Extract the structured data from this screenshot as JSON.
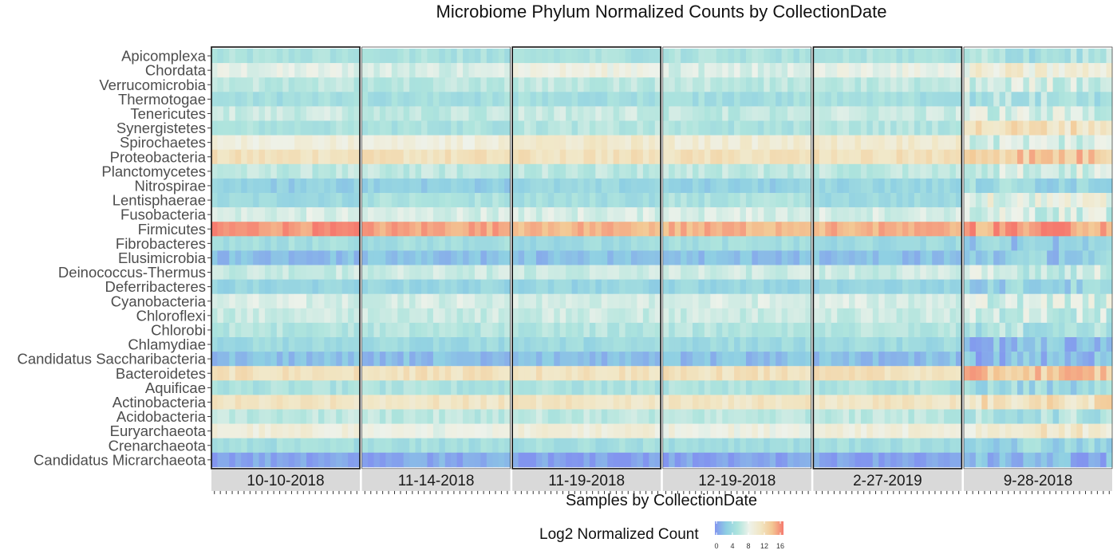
{
  "chart_data": {
    "type": "heatmap",
    "title": "Microbiome Phylum Normalized Counts by CollectionDate",
    "xlabel": "Samples by CollectionDate",
    "ylabel": "",
    "y_categories": [
      "Apicomplexa",
      "Chordata",
      "Verrucomicrobia",
      "Thermotogae",
      "Tenericutes",
      "Synergistetes",
      "Spirochaetes",
      "Proteobacteria",
      "Planctomycetes",
      "Nitrospirae",
      "Lentisphaerae",
      "Fusobacteria",
      "Firmicutes",
      "Fibrobacteres",
      "Elusimicrobia",
      "Deinococcus-Thermus",
      "Deferribacteres",
      "Cyanobacteria",
      "Chloroflexi",
      "Chlorobi",
      "Chlamydiae",
      "Candidatus Saccharibacteria",
      "Bacteroidetes",
      "Aquificae",
      "Actinobacteria",
      "Acidobacteria",
      "Euryarchaeota",
      "Crenarchaeota",
      "Candidatus Micrarchaeota"
    ],
    "facets": [
      "10-10-2018",
      "11-14-2018",
      "11-19-2018",
      "12-19-2018",
      "2-27-2019",
      "9-28-2018"
    ],
    "samples_per_facet": [
      25,
      25,
      25,
      25,
      25,
      25
    ],
    "approx_log2_count_by_phylum": {
      "Apicomplexa": [
        5,
        5,
        5,
        5,
        5,
        5
      ],
      "Chordata": [
        7.5,
        7,
        8.5,
        7,
        8,
        9
      ],
      "Verrucomicrobia": [
        6,
        6,
        6,
        6,
        6,
        7
      ],
      "Thermotogae": [
        4.5,
        4.5,
        4.5,
        4.5,
        4.5,
        5
      ],
      "Tenericutes": [
        6.5,
        6,
        6.5,
        6,
        6.5,
        7
      ],
      "Synergistetes": [
        5,
        5,
        5.5,
        5,
        5.5,
        11
      ],
      "Spirochaetes": [
        9,
        9,
        10,
        9.5,
        10,
        7
      ],
      "Proteobacteria": [
        11,
        11,
        11,
        11,
        11,
        13
      ],
      "Planctomycetes": [
        6,
        6,
        6,
        6,
        6,
        7
      ],
      "Nitrospirae": [
        3,
        3,
        3.5,
        3,
        3.5,
        4
      ],
      "Lentisphaerae": [
        4,
        5,
        4.5,
        5,
        4,
        8
      ],
      "Fusobacteria": [
        7,
        7,
        7,
        7,
        7,
        7
      ],
      "Firmicutes": [
        15,
        14.5,
        14,
        14,
        14,
        15
      ],
      "Fibrobacteres": [
        4.5,
        4.5,
        4,
        4.5,
        4,
        3
      ],
      "Elusimicrobia": [
        2,
        2,
        2,
        2,
        2,
        3
      ],
      "Deinococcus-Thermus": [
        6.5,
        6.5,
        6.5,
        6.5,
        6.5,
        6.5
      ],
      "Deferribacteres": [
        3.5,
        3.5,
        3.5,
        3.5,
        3.5,
        3.5
      ],
      "Cyanobacteria": [
        7,
        7,
        7,
        7,
        7,
        7
      ],
      "Chloroflexi": [
        6.5,
        6.5,
        6.5,
        6.5,
        6.5,
        6.5
      ],
      "Chlorobi": [
        5.5,
        5.5,
        5.5,
        5.5,
        5.5,
        5
      ],
      "Chlamydiae": [
        4,
        4,
        4,
        4,
        4,
        2
      ],
      "Candidatus Saccharibacteria": [
        2,
        2,
        2,
        2,
        2,
        2
      ],
      "Bacteroidetes": [
        11,
        11,
        11,
        11,
        11,
        13
      ],
      "Aquificae": [
        5,
        5,
        5,
        5,
        5,
        4
      ],
      "Actinobacteria": [
        10.5,
        10.5,
        10.5,
        10.5,
        10.5,
        11
      ],
      "Acidobacteria": [
        6,
        6,
        6,
        6,
        6,
        5
      ],
      "Euryarchaeota": [
        9,
        8,
        9,
        8.5,
        9,
        10
      ],
      "Crenarchaeota": [
        4.5,
        4.5,
        4.5,
        4.5,
        4.5,
        4
      ],
      "Candidatus Micrarchaeota": [
        1,
        1,
        0.5,
        0.5,
        0.5,
        1.5
      ]
    },
    "color_scale": {
      "title": "Log2 Normalized Count",
      "min": 0,
      "max": 16,
      "ticks": [
        0,
        4,
        8,
        12,
        16
      ],
      "colors": [
        "#8295ef",
        "#8ecfe3",
        "#aee4dd",
        "#eef2ea",
        "#f1e6c4",
        "#f3c894",
        "#f57a6e"
      ]
    },
    "grid": false,
    "legend_position": "bottom",
    "strip_color": "#d9d9d9",
    "facet_border_color": "#111111"
  }
}
